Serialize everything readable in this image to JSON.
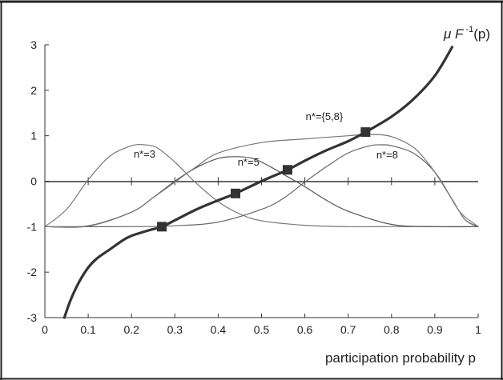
{
  "chart_data": {
    "type": "line",
    "xlabel": "participation probability p",
    "ylabel": "",
    "xlim": [
      0,
      1
    ],
    "ylim": [
      -3,
      3
    ],
    "x_ticks": [
      "0",
      "0.1",
      "0.2",
      "0.3",
      "0.4",
      "0.5",
      "0.6",
      "0.7",
      "0.8",
      "0.9",
      "1"
    ],
    "y_ticks": [
      "-3",
      "-2",
      "-1",
      "0",
      "1",
      "2",
      "3"
    ],
    "grid": false,
    "curve_label": {
      "prefix": "μ F",
      "sup": " -1",
      "suffix": "(p)"
    },
    "series": [
      {
        "label": "μF⁻¹(p)",
        "role": "main",
        "color": "#333333",
        "x": [
          0.045,
          0.06,
          0.08,
          0.1,
          0.12,
          0.15,
          0.18,
          0.2,
          0.24,
          0.27,
          0.3,
          0.35,
          0.4,
          0.44,
          0.5,
          0.56,
          0.6,
          0.65,
          0.7,
          0.74,
          0.8,
          0.85,
          0.9,
          0.94
        ],
        "y": [
          -3.0,
          -2.6,
          -2.2,
          -1.9,
          -1.7,
          -1.5,
          -1.3,
          -1.2,
          -1.08,
          -1.0,
          -0.86,
          -0.62,
          -0.42,
          -0.27,
          0.0,
          0.25,
          0.45,
          0.68,
          0.88,
          1.08,
          1.42,
          1.8,
          2.32,
          2.95
        ]
      },
      {
        "label": "n*=3",
        "role": "window",
        "color": "#777777",
        "x": [
          0.0,
          0.05,
          0.1,
          0.15,
          0.2,
          0.23,
          0.26,
          0.3,
          0.35,
          0.4,
          0.45,
          0.5,
          0.6,
          0.7,
          0.8,
          0.9,
          1.0
        ],
        "y": [
          -1.0,
          -0.62,
          0.03,
          0.55,
          0.78,
          0.8,
          0.73,
          0.42,
          -0.05,
          -0.45,
          -0.72,
          -0.87,
          -0.97,
          -1.0,
          -1.0,
          -1.0,
          -1.0
        ]
      },
      {
        "label": "n*=5",
        "role": "window",
        "color": "#555555",
        "x": [
          0.0,
          0.1,
          0.2,
          0.25,
          0.3,
          0.35,
          0.4,
          0.44,
          0.48,
          0.52,
          0.56,
          0.6,
          0.65,
          0.7,
          0.8,
          0.9,
          1.0
        ],
        "y": [
          -1.0,
          -0.98,
          -0.68,
          -0.36,
          0.0,
          0.3,
          0.5,
          0.54,
          0.5,
          0.32,
          0.1,
          -0.12,
          -0.42,
          -0.66,
          -0.95,
          -1.0,
          -1.0
        ]
      },
      {
        "label": "n*=8",
        "role": "window",
        "color": "#666666",
        "x": [
          0.0,
          0.2,
          0.3,
          0.4,
          0.5,
          0.55,
          0.6,
          0.65,
          0.7,
          0.75,
          0.78,
          0.8,
          0.85,
          0.9,
          0.94,
          0.97,
          1.0
        ],
        "y": [
          -1.0,
          -1.0,
          -0.98,
          -0.9,
          -0.62,
          -0.38,
          -0.02,
          0.32,
          0.62,
          0.78,
          0.8,
          0.78,
          0.62,
          0.2,
          -0.4,
          -0.85,
          -1.0
        ]
      },
      {
        "label": "n*={5,8}",
        "role": "window",
        "color": "#777777",
        "x": [
          0.0,
          0.1,
          0.2,
          0.25,
          0.3,
          0.35,
          0.4,
          0.5,
          0.6,
          0.7,
          0.75,
          0.8,
          0.85,
          0.88,
          0.9,
          0.93,
          0.96,
          1.0
        ],
        "y": [
          -1.0,
          -0.99,
          -0.68,
          -0.36,
          -0.02,
          0.32,
          0.62,
          0.85,
          0.93,
          1.0,
          1.03,
          0.98,
          0.75,
          0.45,
          0.2,
          -0.25,
          -0.7,
          -1.0
        ]
      }
    ],
    "markers": [
      {
        "x": 0.27,
        "y": -1.0
      },
      {
        "x": 0.44,
        "y": -0.27
      },
      {
        "x": 0.56,
        "y": 0.25
      },
      {
        "x": 0.74,
        "y": 1.08
      }
    ],
    "annotations": [
      {
        "text": "n*=3",
        "x": 0.23,
        "y": 0.52
      },
      {
        "text": "n*=5",
        "x": 0.47,
        "y": 0.34
      },
      {
        "text": "n*=8",
        "x": 0.79,
        "y": 0.5
      },
      {
        "text": "n*={5,8}",
        "x": 0.645,
        "y": 1.35
      }
    ]
  }
}
